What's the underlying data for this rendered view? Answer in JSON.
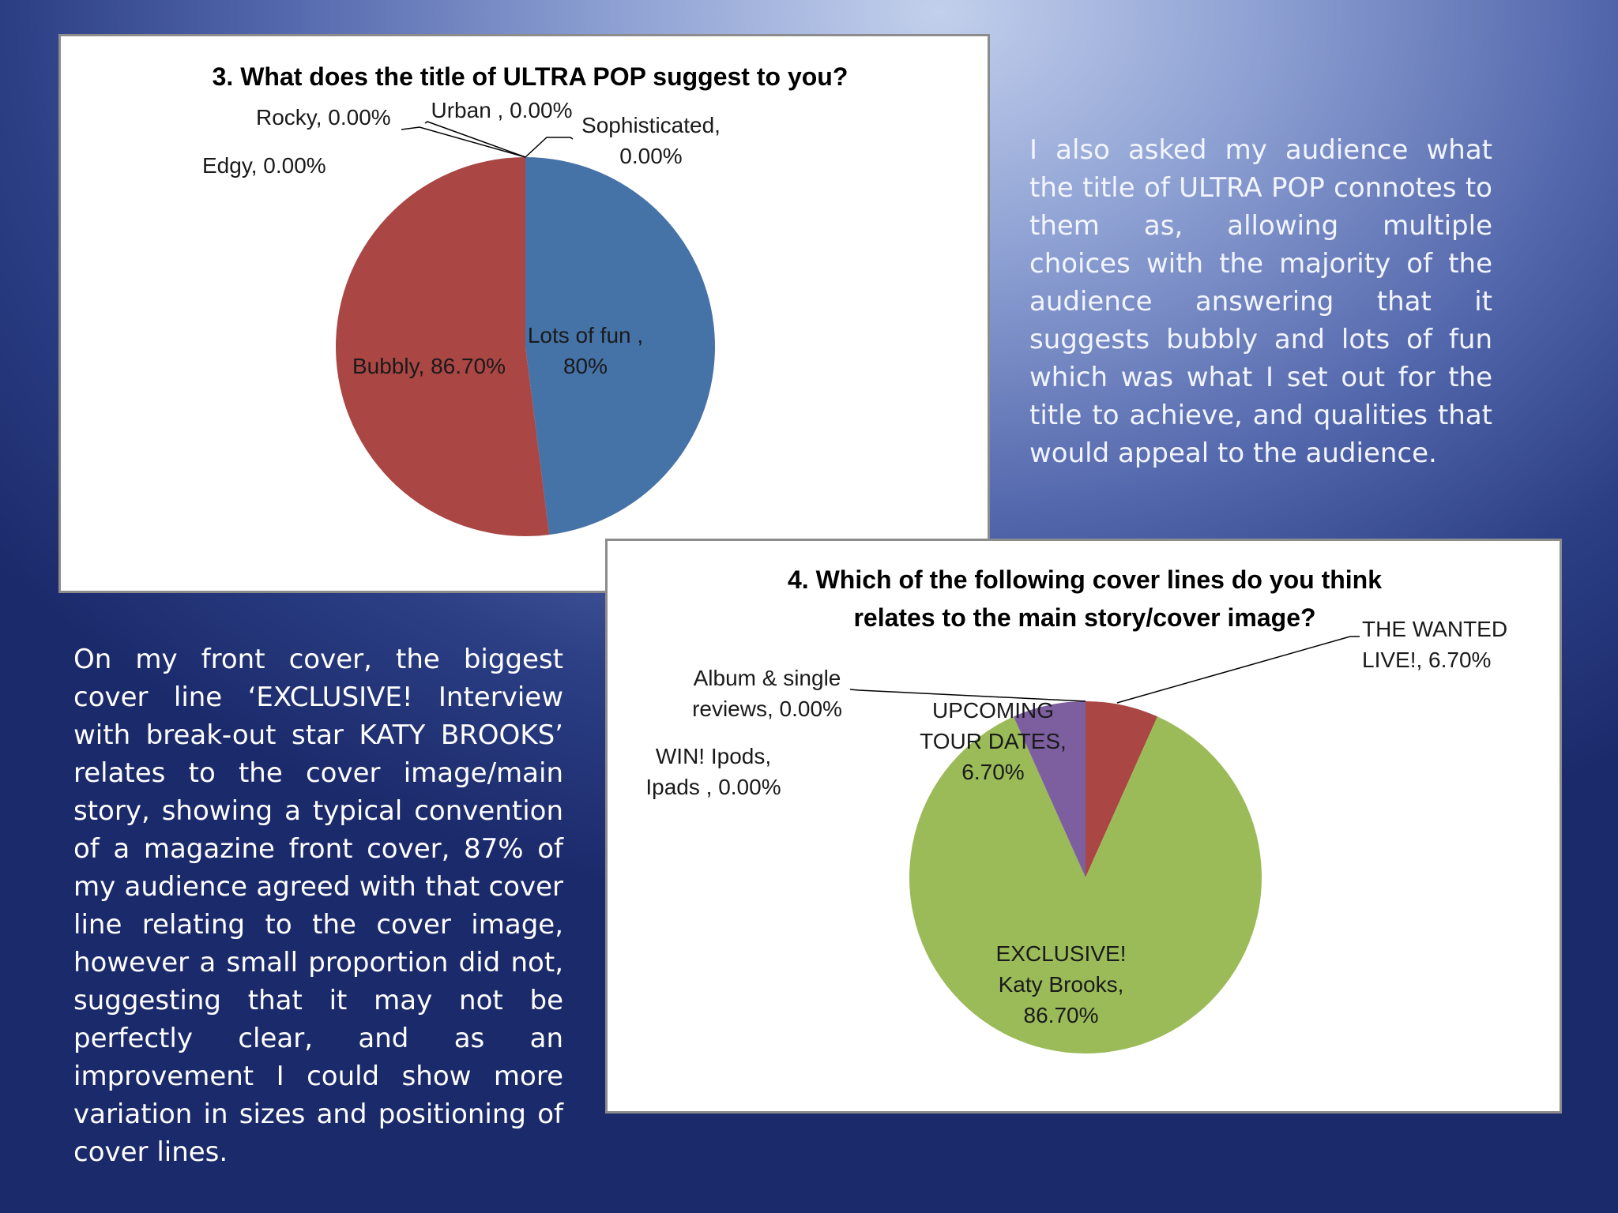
{
  "colors": {
    "blue": "#4572a7",
    "red": "#aa4643",
    "green": "#9bbb59",
    "purple": "#7d5fa0"
  },
  "paragraphs": {
    "right": "I also asked my audience what the title of ULTRA POP connotes to them as, allowing multiple choices with the majority of the audience answering that it suggests bubbly and lots of fun which was what I set out for the title to achieve, and qualities that would appeal to the audience.",
    "left": "On my front cover, the biggest cover line ‘EXCLUSIVE! Interview with break-out star KATY BROOKS’ relates to the cover image/main story, showing a typical convention of a magazine front cover, 87% of my audience agreed with that cover line relating to the cover image, however a small proportion did not, suggesting that it may not be perfectly clear, and as an improvement I could show more variation in sizes and positioning of cover lines."
  },
  "chart_data": [
    {
      "type": "pie",
      "title": "3. What does the title of ULTRA POP suggest to you?",
      "series": [
        {
          "slices": [
            {
              "label": "Lots of fun",
              "value": 80,
              "value_text": "80%",
              "color": "#4572a7",
              "label_lines": [
                "Lots of fun ,",
                "80%"
              ]
            },
            {
              "label": "Bubbly",
              "value": 86.7,
              "value_text": "86.70%",
              "color": "#aa4643",
              "label_lines": [
                "Bubbly, 86.70%"
              ]
            },
            {
              "label": "Edgy",
              "value": 0,
              "value_text": "0.00%",
              "label_lines": [
                "Edgy, 0.00%"
              ]
            },
            {
              "label": "Rocky",
              "value": 0,
              "value_text": "0.00%",
              "label_lines": [
                "Rocky, 0.00%"
              ]
            },
            {
              "label": "Urban",
              "value": 0,
              "value_text": "0.00%",
              "label_lines": [
                "Urban , 0.00%"
              ]
            },
            {
              "label": "Sophisticated",
              "value": 0,
              "value_text": "0.00%",
              "label_lines": [
                "Sophisticated,",
                "0.00%"
              ]
            }
          ]
        }
      ]
    },
    {
      "type": "pie",
      "title": "4. Which of the following cover lines do you think relates to the main story/cover image?",
      "title_lines": [
        "4. Which of the following cover lines do you think",
        "relates to the main story/cover image?"
      ],
      "series": [
        {
          "slices": [
            {
              "label": "THE WANTED LIVE!",
              "value": 6.7,
              "value_text": "6.70%",
              "color": "#aa4643",
              "label_lines": [
                "THE WANTED",
                "LIVE!, 6.70%"
              ]
            },
            {
              "label": "EXCLUSIVE! Katy Brooks",
              "value": 86.7,
              "value_text": "86.70%",
              "color": "#9bbb59",
              "label_lines": [
                "EXCLUSIVE!",
                "Katy Brooks,",
                "86.70%"
              ]
            },
            {
              "label": "UPCOMING TOUR DATES",
              "value": 6.7,
              "value_text": "6.70%",
              "color": "#7d5fa0",
              "label_lines": [
                "UPCOMING",
                "TOUR DATES,",
                "6.70%"
              ]
            },
            {
              "label": "WIN! Ipods, Ipads",
              "value": 0,
              "value_text": "0.00%",
              "label_lines": [
                "WIN! Ipods,",
                "Ipads , 0.00%"
              ]
            },
            {
              "label": "Album & single reviews",
              "value": 0,
              "value_text": "0.00%",
              "label_lines": [
                "Album & single",
                "reviews, 0.00%"
              ]
            }
          ]
        }
      ]
    }
  ]
}
